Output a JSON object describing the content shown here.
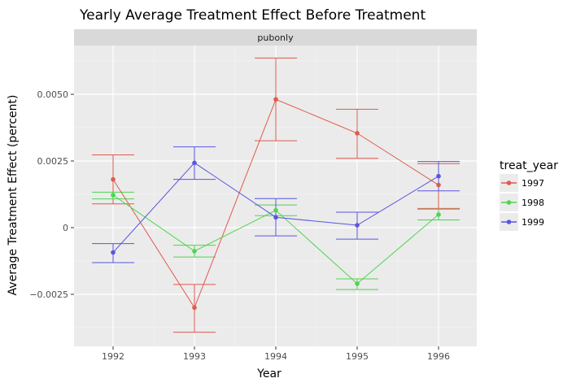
{
  "chart_data": {
    "type": "line",
    "title": "Yearly Average Treatment Effect Before Treatment",
    "facet_label": "pubonly",
    "xlabel": "Year",
    "ylabel": "Average Treatment Effect (percent)",
    "x": [
      1992,
      1993,
      1994,
      1995,
      1996
    ],
    "x_tick_labels": [
      "1992",
      "1993",
      "1994",
      "1995",
      "1996"
    ],
    "y_ticks": [
      -0.0025,
      0,
      0.0025,
      0.005
    ],
    "y_tick_labels": [
      "−0.0025",
      "0",
      "0.0025",
      "0.0050"
    ],
    "ylim": [
      -0.0044,
      0.0069
    ],
    "grid": true,
    "legend": {
      "title": "treat_year",
      "position": "right"
    },
    "series": [
      {
        "name": "1997",
        "color": "#e05a4e",
        "values": [
          0.00181,
          -0.003,
          0.00481,
          0.00354,
          0.0016
        ],
        "lower": [
          0.00089,
          -0.00392,
          0.00326,
          0.0026,
          0.00072
        ],
        "upper": [
          0.00273,
          -0.00213,
          0.00636,
          0.00444,
          0.0024
        ]
      },
      {
        "name": "1998",
        "color": "#4fd44f",
        "values": [
          0.00122,
          -0.00088,
          0.00065,
          -0.0021,
          0.00049
        ],
        "lower": [
          0.00108,
          -0.0011,
          0.00045,
          -0.00232,
          0.00029
        ],
        "upper": [
          0.00133,
          -0.00066,
          0.00085,
          -0.00192,
          0.00069
        ]
      },
      {
        "name": "1999",
        "color": "#5a55e0",
        "values": [
          -0.00093,
          0.00243,
          0.00039,
          9e-05,
          0.00193
        ],
        "lower": [
          -0.00131,
          0.00181,
          -0.00031,
          -0.00043,
          0.00138
        ],
        "upper": [
          -0.0006,
          0.00303,
          0.00109,
          0.00058,
          0.00248
        ]
      }
    ]
  }
}
